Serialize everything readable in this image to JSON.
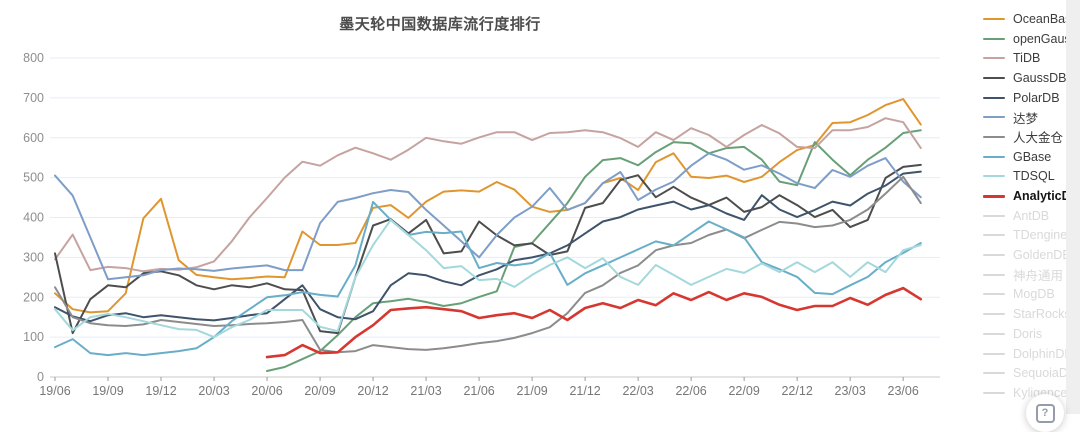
{
  "title": "墨天轮中国数据库流行度排行",
  "help_button": {
    "glyph": "?"
  },
  "legend": {
    "items": [
      {
        "label": "OceanBase",
        "color": "#e0962f",
        "state": "active"
      },
      {
        "label": "openGauss",
        "color": "#67a077",
        "state": "active"
      },
      {
        "label": "TiDB",
        "color": "#c5a3a0",
        "state": "active"
      },
      {
        "label": "GaussDB",
        "color": "#4d4d4d",
        "state": "active"
      },
      {
        "label": "PolarDB",
        "color": "#3f536b",
        "state": "active"
      },
      {
        "label": "达梦",
        "color": "#7e9dc7",
        "state": "active"
      },
      {
        "label": "人大金仓",
        "color": "#8c8c8c",
        "state": "active"
      },
      {
        "label": "GBase",
        "color": "#68aec8",
        "state": "active"
      },
      {
        "label": "TDSQL",
        "color": "#a3d8dd",
        "state": "active"
      },
      {
        "label": "AnalyticDB",
        "color": "#d63730",
        "state": "active-highlight"
      },
      {
        "label": "AntDB",
        "color": "#d9d9d9",
        "state": "disabled"
      },
      {
        "label": "TDengine",
        "color": "#d9d9d9",
        "state": "disabled"
      },
      {
        "label": "GoldenDB",
        "color": "#d9d9d9",
        "state": "disabled"
      },
      {
        "label": "神舟通用",
        "color": "#d9d9d9",
        "state": "disabled"
      },
      {
        "label": "MogDB",
        "color": "#d9d9d9",
        "state": "disabled"
      },
      {
        "label": "StarRocks",
        "color": "#d9d9d9",
        "state": "disabled"
      },
      {
        "label": "Doris",
        "color": "#d9d9d9",
        "state": "disabled"
      },
      {
        "label": "DolphinDB",
        "color": "#d9d9d9",
        "state": "disabled"
      },
      {
        "label": "SequoiaDB",
        "color": "#d9d9d9",
        "state": "disabled"
      },
      {
        "label": "Kyligence",
        "color": "#d9d9d9",
        "state": "disabled"
      }
    ]
  },
  "chart_data": {
    "type": "line",
    "title": "墨天轮中国数据库流行度排行",
    "grid": true,
    "legend_position": "right",
    "ylim": [
      0,
      800
    ],
    "y_ticks": [
      0,
      100,
      200,
      300,
      400,
      500,
      600,
      700,
      800
    ],
    "x_tick_labels": [
      "19/06",
      "19/09",
      "19/12",
      "20/03",
      "20/06",
      "20/09",
      "20/12",
      "21/03",
      "21/06",
      "21/09",
      "21/12",
      "22/03",
      "22/06",
      "22/09",
      "22/12",
      "23/03",
      "23/06"
    ],
    "x": [
      "19/06",
      "19/07",
      "19/08",
      "19/09",
      "19/10",
      "19/11",
      "19/12",
      "20/01",
      "20/02",
      "20/03",
      "20/04",
      "20/05",
      "20/06",
      "20/07",
      "20/08",
      "20/09",
      "20/10",
      "20/11",
      "20/12",
      "21/01",
      "21/02",
      "21/03",
      "21/04",
      "21/05",
      "21/06",
      "21/07",
      "21/08",
      "21/09",
      "21/10",
      "21/11",
      "21/12",
      "22/01",
      "22/02",
      "22/03",
      "22/04",
      "22/05",
      "22/06",
      "22/07",
      "22/08",
      "22/09",
      "22/10",
      "22/11",
      "22/12",
      "23/01",
      "23/02",
      "23/03",
      "23/04",
      "23/05",
      "23/06",
      "23/07"
    ],
    "series": [
      {
        "name": "OceanBase",
        "color": "#e0962f",
        "width": 2,
        "values": [
          210,
          170,
          162,
          165,
          210,
          398,
          447,
          293,
          256,
          250,
          245,
          248,
          252,
          250,
          365,
          331,
          331,
          336,
          424,
          431,
          399,
          440,
          465,
          468,
          465,
          489,
          470,
          427,
          414,
          419,
          436,
          486,
          499,
          469,
          539,
          561,
          502,
          499,
          505,
          489,
          502,
          539,
          569,
          582,
          637,
          639,
          657,
          682,
          697,
          633
        ]
      },
      {
        "name": "openGauss",
        "color": "#67a077",
        "width": 2,
        "values": [
          null,
          null,
          null,
          null,
          null,
          null,
          null,
          null,
          null,
          null,
          null,
          null,
          15,
          25,
          45,
          65,
          105,
          150,
          185,
          190,
          196,
          188,
          178,
          185,
          201,
          215,
          326,
          336,
          386,
          436,
          502,
          544,
          549,
          531,
          564,
          589,
          586,
          561,
          574,
          577,
          545,
          490,
          481,
          589,
          545,
          506,
          545,
          575,
          612,
          619
        ]
      },
      {
        "name": "TiDB",
        "color": "#c5a3a0",
        "width": 2,
        "values": [
          295,
          357,
          268,
          276,
          273,
          265,
          271,
          269,
          275,
          290,
          340,
          400,
          449,
          500,
          540,
          530,
          556,
          575,
          561,
          545,
          570,
          600,
          591,
          585,
          601,
          614,
          614,
          594,
          612,
          614,
          619,
          614,
          599,
          577,
          614,
          594,
          624,
          607,
          577,
          607,
          632,
          611,
          577,
          574,
          619,
          619,
          627,
          649,
          639,
          574
        ]
      },
      {
        "name": "GaussDB",
        "color": "#4d4d4d",
        "width": 2,
        "values": [
          310,
          110,
          195,
          230,
          225,
          260,
          265,
          255,
          230,
          220,
          230,
          225,
          235,
          220,
          218,
          115,
          110,
          250,
          380,
          396,
          360,
          394,
          310,
          315,
          390,
          355,
          330,
          335,
          306,
          315,
          424,
          436,
          494,
          506,
          451,
          477,
          450,
          431,
          450,
          414,
          426,
          456,
          431,
          401,
          419,
          376,
          394,
          499,
          527,
          532
        ]
      },
      {
        "name": "PolarDB",
        "color": "#3f536b",
        "width": 2,
        "values": [
          175,
          152,
          140,
          155,
          160,
          150,
          155,
          150,
          145,
          142,
          148,
          155,
          160,
          195,
          230,
          170,
          150,
          145,
          165,
          230,
          260,
          255,
          240,
          230,
          255,
          270,
          293,
          300,
          310,
          330,
          360,
          390,
          401,
          420,
          430,
          440,
          420,
          431,
          410,
          394,
          456,
          420,
          401,
          419,
          440,
          430,
          460,
          480,
          510,
          515
        ]
      },
      {
        "name": "达梦",
        "color": "#7e9dc7",
        "width": 2,
        "values": [
          505,
          455,
          350,
          245,
          250,
          255,
          268,
          272,
          270,
          266,
          272,
          276,
          280,
          268,
          268,
          386,
          439,
          449,
          461,
          469,
          464,
          419,
          380,
          340,
          300,
          356,
          400,
          427,
          474,
          419,
          436,
          486,
          514,
          444,
          470,
          490,
          530,
          561,
          545,
          520,
          531,
          510,
          486,
          474,
          519,
          502,
          530,
          549,
          490,
          451
        ]
      },
      {
        "name": "人大金仓",
        "color": "#8c8c8c",
        "width": 2,
        "values": [
          225,
          150,
          135,
          130,
          128,
          132,
          143,
          138,
          133,
          128,
          130,
          133,
          135,
          138,
          143,
          68,
          62,
          65,
          80,
          75,
          70,
          68,
          72,
          78,
          85,
          90,
          98,
          110,
          125,
          160,
          211,
          230,
          261,
          280,
          318,
          330,
          336,
          356,
          370,
          348,
          369,
          389,
          385,
          376,
          380,
          394,
          420,
          460,
          502,
          436
        ]
      },
      {
        "name": "GBase",
        "color": "#68aec8",
        "width": 2,
        "values": [
          75,
          95,
          60,
          55,
          60,
          55,
          60,
          65,
          72,
          100,
          140,
          170,
          200,
          205,
          213,
          206,
          202,
          280,
          439,
          394,
          356,
          364,
          361,
          365,
          273,
          286,
          280,
          286,
          311,
          231,
          260,
          280,
          300,
          320,
          340,
          330,
          360,
          390,
          370,
          350,
          288,
          270,
          251,
          211,
          208,
          230,
          251,
          288,
          311,
          336
        ]
      },
      {
        "name": "TDSQL",
        "color": "#a3d8dd",
        "width": 2,
        "values": [
          170,
          117,
          150,
          158,
          150,
          140,
          130,
          120,
          118,
          100,
          125,
          143,
          168,
          168,
          168,
          126,
          115,
          250,
          331,
          394,
          356,
          318,
          273,
          278,
          243,
          246,
          226,
          256,
          281,
          300,
          273,
          298,
          251,
          231,
          281,
          256,
          231,
          251,
          271,
          261,
          285,
          263,
          288,
          263,
          288,
          251,
          288,
          263,
          318,
          331
        ]
      },
      {
        "name": "AnalyticDB",
        "color": "#d63730",
        "width": 2.6,
        "values": [
          null,
          null,
          null,
          null,
          null,
          null,
          null,
          null,
          null,
          null,
          null,
          null,
          50,
          55,
          80,
          60,
          62,
          100,
          130,
          168,
          172,
          175,
          170,
          165,
          148,
          155,
          160,
          148,
          168,
          143,
          173,
          185,
          173,
          193,
          180,
          210,
          193,
          213,
          193,
          210,
          201,
          181,
          168,
          178,
          178,
          198,
          181,
          206,
          223,
          195
        ]
      }
    ]
  }
}
